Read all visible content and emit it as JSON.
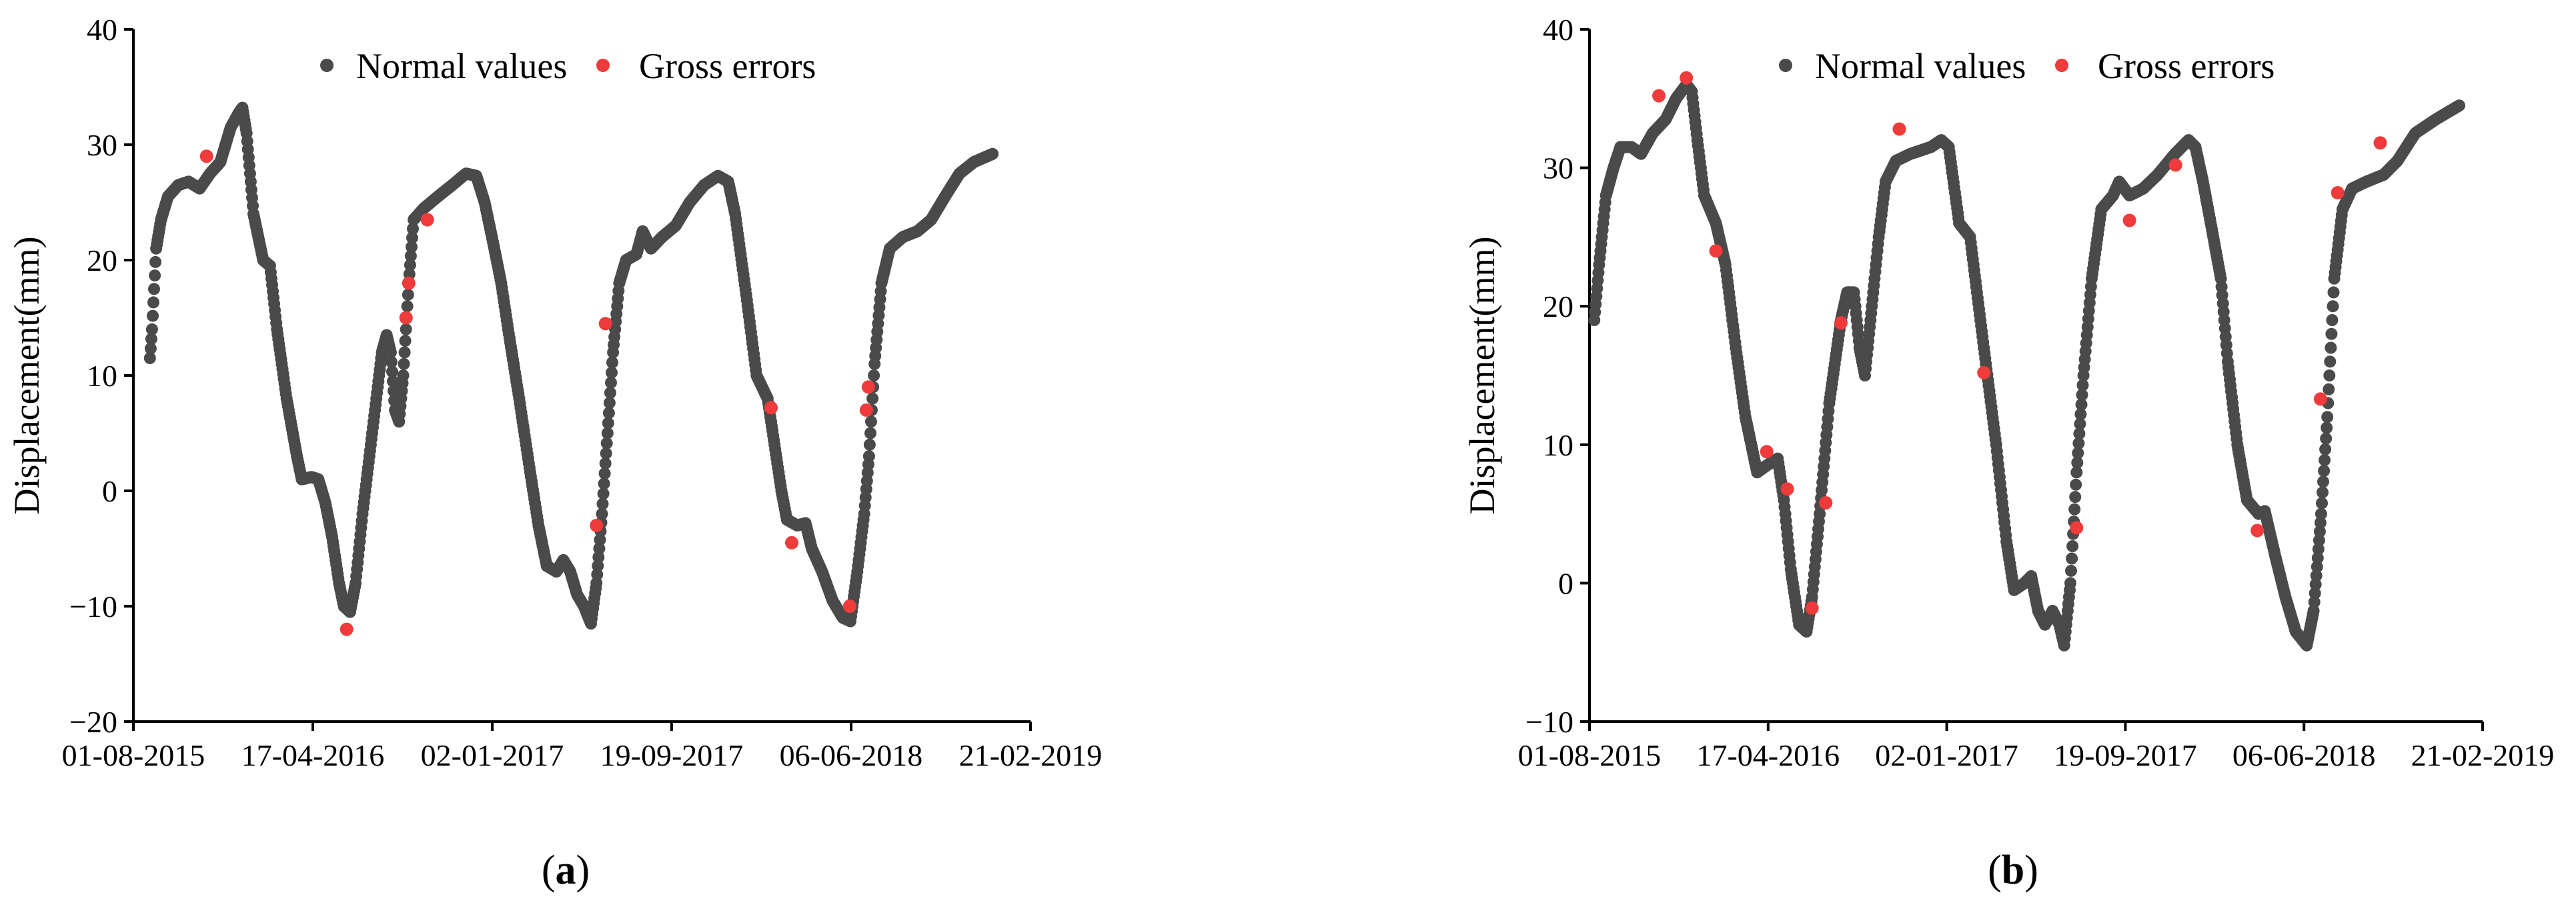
{
  "colors": {
    "normal": "#4a4a4a",
    "gross": "#ef3b3b",
    "axis": "#000000"
  },
  "chart_data": [
    {
      "type": "scatter",
      "panel": "a",
      "caption": {
        "open": "(",
        "letter": "a",
        "close": ")"
      },
      "xlabel": "",
      "ylabel": "Displacement(mm)",
      "x_start": "2015-08-01",
      "x_end": "2019-02-21",
      "ylim": [
        -20,
        40
      ],
      "y_ticks": [
        -20,
        -10,
        0,
        10,
        20,
        30,
        40
      ],
      "y_tick_labels": [
        "−20",
        "−10",
        "0",
        "10",
        "20",
        "30",
        "40"
      ],
      "x_ticks": [
        "2015-08-01",
        "2016-04-17",
        "2017-01-02",
        "2017-09-19",
        "2018-06-06",
        "2019-02-21"
      ],
      "x_tick_labels": [
        "01-08-2015",
        "17-04-2016",
        "02-01-2017",
        "19-09-2017",
        "06-06-2018",
        "21-02-2019"
      ],
      "legend": [
        "Normal values",
        "Gross errors"
      ],
      "legend_position": "top-center",
      "series": [
        {
          "name": "Normal values",
          "date_range": [
            "2015-08-25",
            "2018-12-28"
          ],
          "knots": [
            [
              "2015-08-25",
              11.5
            ],
            [
              "2015-08-28",
              14
            ],
            [
              "2015-09-03",
              21
            ],
            [
              "2015-09-10",
              23.5
            ],
            [
              "2015-09-20",
              25.5
            ],
            [
              "2015-10-05",
              26.5
            ],
            [
              "2015-10-20",
              26.8
            ],
            [
              "2015-11-05",
              26.2
            ],
            [
              "2015-11-20",
              27.5
            ],
            [
              "2015-12-05",
              28.5
            ],
            [
              "2015-12-20",
              31.5
            ],
            [
              "2016-01-01",
              32.8
            ],
            [
              "2016-01-06",
              33.2
            ],
            [
              "2016-01-12",
              31
            ],
            [
              "2016-01-22",
              24
            ],
            [
              "2016-02-05",
              20
            ],
            [
              "2016-02-15",
              19.5
            ],
            [
              "2016-02-25",
              14
            ],
            [
              "2016-03-10",
              8
            ],
            [
              "2016-03-25",
              3
            ],
            [
              "2016-04-01",
              1
            ],
            [
              "2016-04-15",
              1.2
            ],
            [
              "2016-04-25",
              1
            ],
            [
              "2016-05-05",
              -1
            ],
            [
              "2016-05-15",
              -4
            ],
            [
              "2016-05-25",
              -8
            ],
            [
              "2016-06-01",
              -10
            ],
            [
              "2016-06-10",
              -10.5
            ],
            [
              "2016-06-18",
              -8
            ],
            [
              "2016-06-28",
              -2
            ],
            [
              "2016-07-08",
              3
            ],
            [
              "2016-07-18",
              8
            ],
            [
              "2016-07-26",
              12
            ],
            [
              "2016-08-02",
              13.5
            ],
            [
              "2016-08-08",
              12
            ],
            [
              "2016-08-14",
              7
            ],
            [
              "2016-08-20",
              6
            ],
            [
              "2016-08-26",
              10
            ],
            [
              "2016-09-03",
              18
            ],
            [
              "2016-09-10",
              23.5
            ],
            [
              "2016-09-25",
              24.5
            ],
            [
              "2016-10-15",
              25.5
            ],
            [
              "2016-11-05",
              26.5
            ],
            [
              "2016-11-25",
              27.5
            ],
            [
              "2016-12-10",
              27.3
            ],
            [
              "2016-12-22",
              25
            ],
            [
              "2017-01-05",
              21
            ],
            [
              "2017-01-15",
              18
            ],
            [
              "2017-01-25",
              14
            ],
            [
              "2017-02-10",
              8
            ],
            [
              "2017-02-25",
              2
            ],
            [
              "2017-03-10",
              -3
            ],
            [
              "2017-03-22",
              -6.5
            ],
            [
              "2017-04-05",
              -7
            ],
            [
              "2017-04-15",
              -6
            ],
            [
              "2017-04-25",
              -7
            ],
            [
              "2017-05-05",
              -9
            ],
            [
              "2017-05-15",
              -10
            ],
            [
              "2017-05-25",
              -11.5
            ],
            [
              "2017-06-02",
              -8
            ],
            [
              "2017-06-10",
              -2
            ],
            [
              "2017-06-18",
              5
            ],
            [
              "2017-06-26",
              12
            ],
            [
              "2017-07-05",
              18
            ],
            [
              "2017-07-15",
              20
            ],
            [
              "2017-07-30",
              20.5
            ],
            [
              "2017-08-08",
              22.5
            ],
            [
              "2017-08-20",
              21
            ],
            [
              "2017-09-05",
              22
            ],
            [
              "2017-09-25",
              23
            ],
            [
              "2017-10-15",
              25
            ],
            [
              "2017-11-05",
              26.5
            ],
            [
              "2017-11-25",
              27.3
            ],
            [
              "2017-12-10",
              26.8
            ],
            [
              "2017-12-20",
              24
            ],
            [
              "2018-01-05",
              17
            ],
            [
              "2018-01-20",
              10
            ],
            [
              "2018-02-05",
              8
            ],
            [
              "2018-02-15",
              4
            ],
            [
              "2018-02-25",
              0
            ],
            [
              "2018-03-05",
              -2.5
            ],
            [
              "2018-03-20",
              -3
            ],
            [
              "2018-04-01",
              -2.8
            ],
            [
              "2018-04-10",
              -5
            ],
            [
              "2018-04-25",
              -7
            ],
            [
              "2018-05-10",
              -9.5
            ],
            [
              "2018-05-25",
              -11
            ],
            [
              "2018-06-05",
              -11.3
            ],
            [
              "2018-06-15",
              -7
            ],
            [
              "2018-06-25",
              -2
            ],
            [
              "2018-07-02",
              3
            ],
            [
              "2018-07-10",
              11
            ],
            [
              "2018-07-20",
              18
            ],
            [
              "2018-08-01",
              21
            ],
            [
              "2018-08-20",
              22
            ],
            [
              "2018-09-10",
              22.5
            ],
            [
              "2018-09-30",
              23.5
            ],
            [
              "2018-10-20",
              25.5
            ],
            [
              "2018-11-10",
              27.5
            ],
            [
              "2018-12-01",
              28.5
            ],
            [
              "2018-12-28",
              29.2
            ]
          ]
        },
        {
          "name": "Gross errors",
          "points": [
            [
              "2015-11-15",
              29
            ],
            [
              "2016-06-05",
              -12
            ],
            [
              "2016-08-30",
              15
            ],
            [
              "2016-09-03",
              18
            ],
            [
              "2016-09-30",
              23.5
            ],
            [
              "2017-06-02",
              -3
            ],
            [
              "2017-06-15",
              14.5
            ],
            [
              "2018-02-10",
              7.2
            ],
            [
              "2018-03-12",
              -4.5
            ],
            [
              "2018-06-04",
              -10
            ],
            [
              "2018-06-28",
              7
            ],
            [
              "2018-07-01",
              9
            ]
          ]
        }
      ]
    },
    {
      "type": "scatter",
      "panel": "b",
      "caption": {
        "open": "(",
        "letter": "b",
        "close": ")"
      },
      "xlabel": "",
      "ylabel": "Displacement(mm)",
      "x_start": "2015-08-01",
      "x_end": "2019-02-21",
      "ylim": [
        -10,
        40
      ],
      "y_ticks": [
        -10,
        0,
        10,
        20,
        30,
        40
      ],
      "y_tick_labels": [
        "−10",
        "0",
        "10",
        "20",
        "30",
        "40"
      ],
      "x_ticks": [
        "2015-08-01",
        "2016-04-17",
        "2017-01-02",
        "2017-09-19",
        "2018-06-06",
        "2019-02-21"
      ],
      "x_tick_labels": [
        "01-08-2015",
        "17-04-2016",
        "02-01-2017",
        "19-09-2017",
        "06-06-2018",
        "21-02-2019"
      ],
      "legend": [
        "Normal values",
        "Gross errors"
      ],
      "legend_position": "top-center",
      "series": [
        {
          "name": "Normal values",
          "date_range": [
            "2015-08-08",
            "2019-01-18"
          ],
          "knots": [
            [
              "2015-08-08",
              19
            ],
            [
              "2015-08-15",
              23
            ],
            [
              "2015-08-25",
              28
            ],
            [
              "2015-09-05",
              30
            ],
            [
              "2015-09-15",
              31.5
            ],
            [
              "2015-10-01",
              31.5
            ],
            [
              "2015-10-15",
              31
            ],
            [
              "2015-11-01",
              32.5
            ],
            [
              "2015-11-20",
              33.5
            ],
            [
              "2015-12-05",
              35
            ],
            [
              "2015-12-20",
              36
            ],
            [
              "2015-12-28",
              35.5
            ],
            [
              "2016-01-05",
              32
            ],
            [
              "2016-01-15",
              28
            ],
            [
              "2016-02-01",
              26
            ],
            [
              "2016-02-15",
              23
            ],
            [
              "2016-03-01",
              17
            ],
            [
              "2016-03-15",
              12
            ],
            [
              "2016-04-01",
              8
            ],
            [
              "2016-04-15",
              8.5
            ],
            [
              "2016-05-01",
              9
            ],
            [
              "2016-05-10",
              6
            ],
            [
              "2016-05-20",
              1
            ],
            [
              "2016-06-01",
              -3
            ],
            [
              "2016-06-12",
              -3.5
            ],
            [
              "2016-06-20",
              -1
            ],
            [
              "2016-07-01",
              5
            ],
            [
              "2016-07-15",
              13
            ],
            [
              "2016-08-01",
              19
            ],
            [
              "2016-08-10",
              21
            ],
            [
              "2016-08-20",
              21
            ],
            [
              "2016-08-28",
              17
            ],
            [
              "2016-09-05",
              15
            ],
            [
              "2016-09-15",
              20
            ],
            [
              "2016-09-25",
              25
            ],
            [
              "2016-10-05",
              29
            ],
            [
              "2016-10-20",
              30.5
            ],
            [
              "2016-11-10",
              31
            ],
            [
              "2016-12-10",
              31.5
            ],
            [
              "2016-12-25",
              32
            ],
            [
              "2017-01-05",
              31.5
            ],
            [
              "2017-01-20",
              26
            ],
            [
              "2017-02-05",
              25
            ],
            [
              "2017-02-25",
              17
            ],
            [
              "2017-03-15",
              10
            ],
            [
              "2017-03-30",
              3
            ],
            [
              "2017-04-10",
              -0.5
            ],
            [
              "2017-04-25",
              0
            ],
            [
              "2017-05-05",
              0.5
            ],
            [
              "2017-05-15",
              -2
            ],
            [
              "2017-05-25",
              -3
            ],
            [
              "2017-06-05",
              -2
            ],
            [
              "2017-06-15",
              -3
            ],
            [
              "2017-06-22",
              -4.5
            ],
            [
              "2017-07-01",
              0
            ],
            [
              "2017-07-10",
              8
            ],
            [
              "2017-07-20",
              15
            ],
            [
              "2017-08-01",
              22
            ],
            [
              "2017-08-15",
              27
            ],
            [
              "2017-09-01",
              28
            ],
            [
              "2017-09-10",
              29
            ],
            [
              "2017-09-25",
              28
            ],
            [
              "2017-10-15",
              28.5
            ],
            [
              "2017-11-05",
              29.5
            ],
            [
              "2017-11-30",
              31
            ],
            [
              "2017-12-20",
              32
            ],
            [
              "2017-12-30",
              31.5
            ],
            [
              "2018-01-10",
              29
            ],
            [
              "2018-01-25",
              25
            ],
            [
              "2018-02-05",
              22
            ],
            [
              "2018-02-15",
              16
            ],
            [
              "2018-03-01",
              10
            ],
            [
              "2018-03-15",
              6
            ],
            [
              "2018-04-01",
              5
            ],
            [
              "2018-04-10",
              5.2
            ],
            [
              "2018-04-25",
              2
            ],
            [
              "2018-05-10",
              -1
            ],
            [
              "2018-05-25",
              -3.5
            ],
            [
              "2018-06-10",
              -4.5
            ],
            [
              "2018-06-20",
              -2
            ],
            [
              "2018-07-01",
              5
            ],
            [
              "2018-07-10",
              12
            ],
            [
              "2018-07-20",
              22
            ],
            [
              "2018-08-01",
              27
            ],
            [
              "2018-08-15",
              28.5
            ],
            [
              "2018-09-05",
              29
            ],
            [
              "2018-09-30",
              29.5
            ],
            [
              "2018-10-20",
              30.5
            ],
            [
              "2018-11-15",
              32.5
            ],
            [
              "2018-12-15",
              33.5
            ],
            [
              "2019-01-18",
              34.5
            ]
          ]
        },
        {
          "name": "Gross errors",
          "points": [
            [
              "2015-11-10",
              35.2
            ],
            [
              "2015-12-20",
              36.5
            ],
            [
              "2016-02-01",
              24
            ],
            [
              "2016-04-15",
              9.5
            ],
            [
              "2016-05-15",
              6.8
            ],
            [
              "2016-06-20",
              -1.8
            ],
            [
              "2016-07-10",
              5.8
            ],
            [
              "2016-08-01",
              18.8
            ],
            [
              "2016-10-25",
              32.8
            ],
            [
              "2017-02-25",
              15.2
            ],
            [
              "2017-07-10",
              4
            ],
            [
              "2017-09-25",
              26.2
            ],
            [
              "2017-12-01",
              30.2
            ],
            [
              "2018-03-30",
              3.8
            ],
            [
              "2018-06-30",
              13.3
            ],
            [
              "2018-07-25",
              28.2
            ],
            [
              "2018-09-25",
              31.8
            ]
          ]
        }
      ]
    }
  ]
}
